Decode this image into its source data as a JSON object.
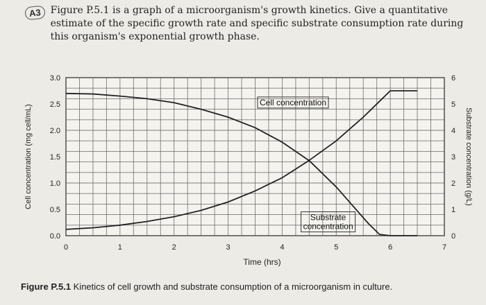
{
  "question": {
    "number": "A3",
    "text": "Figure P.5.1 is a graph of a microorganism's growth kinetics. Give a quantitative estimate of the specific growth rate and specific substrate consumption rate during this organism's exponential growth phase."
  },
  "caption": {
    "label": "Figure P.5.1",
    "text": "Kinetics of cell growth and substrate consumption of a microorganism in culture."
  },
  "chart_data": {
    "type": "line",
    "xlabel": "Time (hrs)",
    "ylabel": "Cell concentration (mg cell/mL)",
    "y2label": "Substrate concentration (g/L)",
    "xlim": [
      0,
      7
    ],
    "ylim": [
      0,
      3.0
    ],
    "y2lim": [
      0,
      6
    ],
    "x_ticks": [
      "0",
      "1",
      "2",
      "3",
      "4",
      "5",
      "6",
      "7"
    ],
    "y_ticks": [
      "0.0",
      "0.5",
      "1.0",
      "1.5",
      "2.0",
      "2.5",
      "3.0"
    ],
    "y2_ticks": [
      "0",
      "1",
      "2",
      "3",
      "4",
      "5",
      "6"
    ],
    "grid": true,
    "series": [
      {
        "name": "Cell concentration",
        "axis": "left",
        "x": [
          0,
          0.5,
          1,
          1.5,
          2,
          2.5,
          3,
          3.5,
          4,
          4.5,
          5,
          5.5,
          5.8,
          6,
          6.2,
          6.5
        ],
        "y": [
          0.12,
          0.15,
          0.2,
          0.27,
          0.36,
          0.48,
          0.64,
          0.85,
          1.1,
          1.43,
          1.8,
          2.25,
          2.55,
          2.75,
          2.75,
          2.75
        ]
      },
      {
        "name": "Substrate concentration",
        "axis": "right",
        "x": [
          0,
          0.5,
          1,
          1.5,
          2,
          2.5,
          3,
          3.5,
          4,
          4.5,
          5,
          5.3,
          5.6,
          5.8,
          6,
          6.5
        ],
        "y": [
          5.4,
          5.38,
          5.3,
          5.2,
          5.05,
          4.8,
          4.5,
          4.1,
          3.55,
          2.85,
          1.85,
          1.15,
          0.45,
          0.05,
          0,
          0
        ]
      }
    ],
    "annotations": [
      "Cell concentration",
      "Substrate concentration"
    ]
  }
}
